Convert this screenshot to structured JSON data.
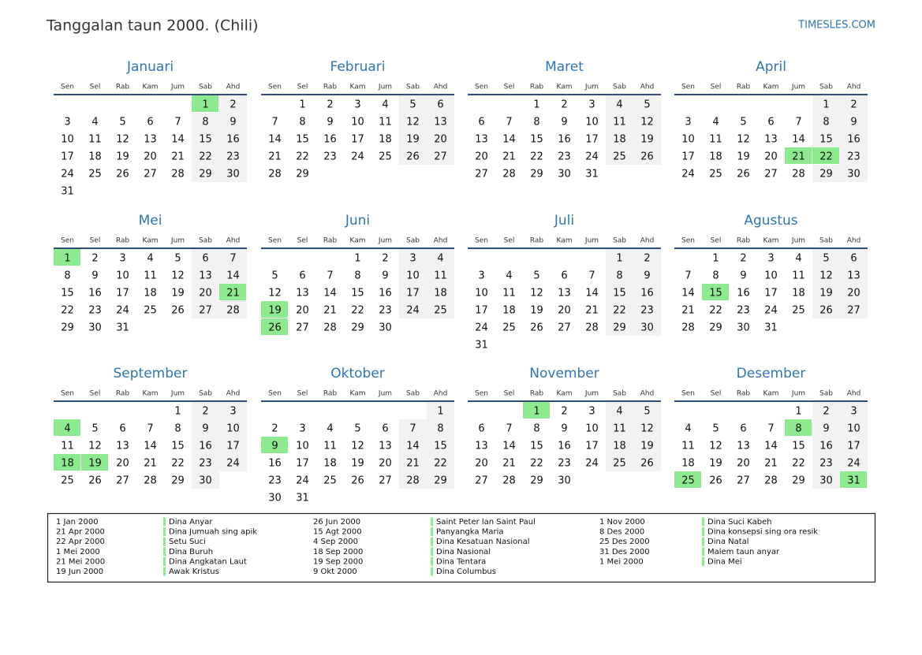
{
  "header": {
    "title": "Tanggalan taun 2000. (Chili)",
    "site": "TIMESLES.COM"
  },
  "weekdays": [
    "Sen",
    "Sel",
    "Rab",
    "Kam",
    "Jum",
    "Sab",
    "Ahd"
  ],
  "months": [
    {
      "name": "Januari",
      "weeks": [
        [
          null,
          null,
          null,
          null,
          null,
          1,
          2
        ],
        [
          3,
          4,
          5,
          6,
          7,
          8,
          9
        ],
        [
          10,
          11,
          12,
          13,
          14,
          15,
          16
        ],
        [
          17,
          18,
          19,
          20,
          21,
          22,
          23
        ],
        [
          24,
          25,
          26,
          27,
          28,
          29,
          30
        ],
        [
          31,
          null,
          null,
          null,
          null,
          null,
          null
        ]
      ],
      "holidays": [
        1
      ]
    },
    {
      "name": "Februari",
      "weeks": [
        [
          null,
          1,
          2,
          3,
          4,
          5,
          6
        ],
        [
          7,
          8,
          9,
          10,
          11,
          12,
          13
        ],
        [
          14,
          15,
          16,
          17,
          18,
          19,
          20
        ],
        [
          21,
          22,
          23,
          24,
          25,
          26,
          27
        ],
        [
          28,
          29,
          null,
          null,
          null,
          null,
          null
        ]
      ],
      "holidays": []
    },
    {
      "name": "Maret",
      "weeks": [
        [
          null,
          null,
          1,
          2,
          3,
          4,
          5
        ],
        [
          6,
          7,
          8,
          9,
          10,
          11,
          12
        ],
        [
          13,
          14,
          15,
          16,
          17,
          18,
          19
        ],
        [
          20,
          21,
          22,
          23,
          24,
          25,
          26
        ],
        [
          27,
          28,
          29,
          30,
          31,
          null,
          null
        ]
      ],
      "holidays": []
    },
    {
      "name": "April",
      "weeks": [
        [
          null,
          null,
          null,
          null,
          null,
          1,
          2
        ],
        [
          3,
          4,
          5,
          6,
          7,
          8,
          9
        ],
        [
          10,
          11,
          12,
          13,
          14,
          15,
          16
        ],
        [
          17,
          18,
          19,
          20,
          21,
          22,
          23
        ],
        [
          24,
          25,
          26,
          27,
          28,
          29,
          30
        ]
      ],
      "holidays": [
        21,
        22
      ]
    },
    {
      "name": "Mei",
      "weeks": [
        [
          1,
          2,
          3,
          4,
          5,
          6,
          7
        ],
        [
          8,
          9,
          10,
          11,
          12,
          13,
          14
        ],
        [
          15,
          16,
          17,
          18,
          19,
          20,
          21
        ],
        [
          22,
          23,
          24,
          25,
          26,
          27,
          28
        ],
        [
          29,
          30,
          31,
          null,
          null,
          null,
          null
        ]
      ],
      "holidays": [
        1,
        21
      ]
    },
    {
      "name": "Juni",
      "weeks": [
        [
          null,
          null,
          null,
          1,
          2,
          3,
          4
        ],
        [
          5,
          6,
          7,
          8,
          9,
          10,
          11
        ],
        [
          12,
          13,
          14,
          15,
          16,
          17,
          18
        ],
        [
          19,
          20,
          21,
          22,
          23,
          24,
          25
        ],
        [
          26,
          27,
          28,
          29,
          30,
          null,
          null
        ]
      ],
      "holidays": [
        19,
        26
      ]
    },
    {
      "name": "Juli",
      "weeks": [
        [
          null,
          null,
          null,
          null,
          null,
          1,
          2
        ],
        [
          3,
          4,
          5,
          6,
          7,
          8,
          9
        ],
        [
          10,
          11,
          12,
          13,
          14,
          15,
          16
        ],
        [
          17,
          18,
          19,
          20,
          21,
          22,
          23
        ],
        [
          24,
          25,
          26,
          27,
          28,
          29,
          30
        ],
        [
          31,
          null,
          null,
          null,
          null,
          null,
          null
        ]
      ],
      "holidays": []
    },
    {
      "name": "Agustus",
      "weeks": [
        [
          null,
          1,
          2,
          3,
          4,
          5,
          6
        ],
        [
          7,
          8,
          9,
          10,
          11,
          12,
          13
        ],
        [
          14,
          15,
          16,
          17,
          18,
          19,
          20
        ],
        [
          21,
          22,
          23,
          24,
          25,
          26,
          27
        ],
        [
          28,
          29,
          30,
          31,
          null,
          null,
          null
        ]
      ],
      "holidays": [
        15
      ]
    },
    {
      "name": "September",
      "weeks": [
        [
          null,
          null,
          null,
          null,
          1,
          2,
          3
        ],
        [
          4,
          5,
          6,
          7,
          8,
          9,
          10
        ],
        [
          11,
          12,
          13,
          14,
          15,
          16,
          17
        ],
        [
          18,
          19,
          20,
          21,
          22,
          23,
          24
        ],
        [
          25,
          26,
          27,
          28,
          29,
          30,
          null
        ]
      ],
      "holidays": [
        4,
        18,
        19
      ]
    },
    {
      "name": "Oktober",
      "weeks": [
        [
          null,
          null,
          null,
          null,
          null,
          null,
          1
        ],
        [
          2,
          3,
          4,
          5,
          6,
          7,
          8
        ],
        [
          9,
          10,
          11,
          12,
          13,
          14,
          15
        ],
        [
          16,
          17,
          18,
          19,
          20,
          21,
          22
        ],
        [
          23,
          24,
          25,
          26,
          27,
          28,
          29
        ],
        [
          30,
          31,
          null,
          null,
          null,
          null,
          null
        ]
      ],
      "holidays": [
        9
      ]
    },
    {
      "name": "November",
      "weeks": [
        [
          null,
          null,
          1,
          2,
          3,
          4,
          5
        ],
        [
          6,
          7,
          8,
          9,
          10,
          11,
          12
        ],
        [
          13,
          14,
          15,
          16,
          17,
          18,
          19
        ],
        [
          20,
          21,
          22,
          23,
          24,
          25,
          26
        ],
        [
          27,
          28,
          29,
          30,
          null,
          null,
          null
        ]
      ],
      "holidays": [
        1
      ]
    },
    {
      "name": "Desember",
      "weeks": [
        [
          null,
          null,
          null,
          null,
          1,
          2,
          3
        ],
        [
          4,
          5,
          6,
          7,
          8,
          9,
          10
        ],
        [
          11,
          12,
          13,
          14,
          15,
          16,
          17
        ],
        [
          18,
          19,
          20,
          21,
          22,
          23,
          24
        ],
        [
          25,
          26,
          27,
          28,
          29,
          30,
          31
        ]
      ],
      "holidays": [
        8,
        25,
        31
      ]
    }
  ],
  "legend": {
    "columns": [
      [
        {
          "date": "1 Jan 2000",
          "name": "Dina Anyar"
        },
        {
          "date": "21 Apr 2000",
          "name": "Dina Jumuah sing apik"
        },
        {
          "date": "22 Apr 2000",
          "name": "Setu Suci"
        },
        {
          "date": "1 Mei 2000",
          "name": "Dina Buruh"
        },
        {
          "date": "21 Mei 2000",
          "name": "Dina Angkatan Laut"
        },
        {
          "date": "19 Jun 2000",
          "name": "Awak Kristus"
        }
      ],
      [
        {
          "date": "26 Jun 2000",
          "name": "Saint Peter lan Saint Paul"
        },
        {
          "date": "15 Agt 2000",
          "name": "Panyangka Maria"
        },
        {
          "date": "4 Sep 2000",
          "name": "Dina Kesatuan Nasional"
        },
        {
          "date": "18 Sep 2000",
          "name": "Dina Nasional"
        },
        {
          "date": "19 Sep 2000",
          "name": "Dina Tentara"
        },
        {
          "date": "9 Okt 2000",
          "name": "Dina Columbus"
        }
      ],
      [
        {
          "date": "1 Nov 2000",
          "name": "Dina Suci Kabeh"
        },
        {
          "date": "8 Des 2000",
          "name": "Dina konsepsi sing ora resik"
        },
        {
          "date": "25 Des 2000",
          "name": "Dina Natal"
        },
        {
          "date": "31 Des 2000",
          "name": "Malem taun anyar"
        },
        {
          "date": "1 Mei 2000",
          "name": "Dina Mei"
        }
      ]
    ]
  }
}
